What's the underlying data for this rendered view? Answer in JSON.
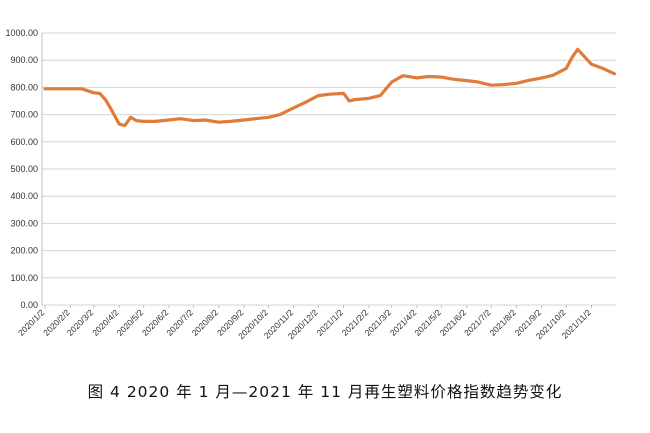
{
  "caption": "图 4  2020 年 1 月—2021 年 11 月再生塑料价格指数趋势变化",
  "chart_data": {
    "type": "line",
    "title": "",
    "xlabel": "",
    "ylabel": "",
    "ylim": [
      0,
      1000
    ],
    "y_ticks": [
      "0.00",
      "100.00",
      "200.00",
      "300.00",
      "400.00",
      "500.00",
      "600.00",
      "700.00",
      "800.00",
      "900.00",
      "1000.00"
    ],
    "x_ticks": [
      "2020/1/2",
      "2020/2/2",
      "2020/3/2",
      "2020/4/2",
      "2020/5/2",
      "2020/6/2",
      "2020/7/2",
      "2020/8/2",
      "2020/9/2",
      "2020/10/2",
      "2020/11/2",
      "2020/12/2",
      "2021/1/2",
      "2021/2/2",
      "2021/3/2",
      "2021/4/2",
      "2021/5/2",
      "2021/6/2",
      "2021/7/2",
      "2021/8/2",
      "2021/9/2",
      "2021/10/2",
      "2021/11/2"
    ],
    "grid": true,
    "series_color": "#E07B39",
    "series": [
      {
        "x": [
          "2020/1/2",
          "2020/1/16",
          "2020/2/2",
          "2020/2/16",
          "2020/3/2",
          "2020/3/9",
          "2020/3/16",
          "2020/3/23",
          "2020/4/2",
          "2020/4/9",
          "2020/4/16",
          "2020/4/23",
          "2020/5/2",
          "2020/5/16",
          "2020/6/2",
          "2020/6/16",
          "2020/7/2",
          "2020/7/16",
          "2020/8/2",
          "2020/8/16",
          "2020/9/2",
          "2020/9/16",
          "2020/10/2",
          "2020/10/16",
          "2020/11/2",
          "2020/11/16",
          "2020/12/2",
          "2020/12/16",
          "2021/1/2",
          "2021/1/9",
          "2021/1/16",
          "2021/2/2",
          "2021/2/16",
          "2021/3/2",
          "2021/3/16",
          "2021/4/2",
          "2021/4/16",
          "2021/5/2",
          "2021/5/16",
          "2021/6/2",
          "2021/6/16",
          "2021/7/2",
          "2021/7/16",
          "2021/8/2",
          "2021/8/16",
          "2021/9/2",
          "2021/9/16",
          "2021/10/2",
          "2021/10/9",
          "2021/10/16",
          "2021/11/2",
          "2021/11/16",
          "2021/11/30"
        ],
        "values": [
          795,
          795,
          795,
          795,
          780,
          778,
          755,
          720,
          665,
          660,
          690,
          678,
          675,
          675,
          680,
          685,
          678,
          680,
          672,
          675,
          680,
          685,
          690,
          700,
          725,
          745,
          770,
          775,
          778,
          750,
          755,
          760,
          770,
          820,
          843,
          835,
          840,
          838,
          830,
          825,
          820,
          808,
          810,
          815,
          825,
          835,
          845,
          870,
          910,
          940,
          885,
          870,
          850
        ]
      }
    ]
  }
}
